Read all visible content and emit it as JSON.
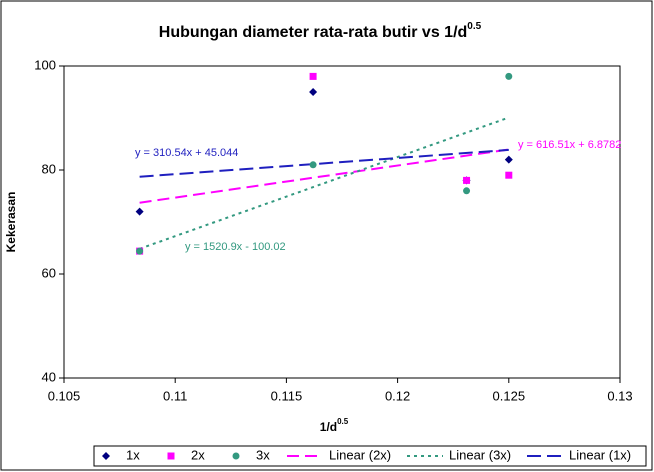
{
  "chart_data": {
    "type": "scatter",
    "title": "Hubungan diameter rata-rata butir vs 1/d",
    "title_sup": "0.5",
    "x_label": "1/d",
    "x_label_sup": "0.5",
    "y_label": "Kekerasan",
    "x": [
      0.1084,
      0.1162,
      0.1231,
      0.125
    ],
    "series": [
      {
        "name": "1x",
        "color": "#000080",
        "marker": "diamond",
        "values": [
          72,
          95,
          78,
          82
        ]
      },
      {
        "name": "2x",
        "color": "#ff00ff",
        "marker": "square",
        "values": [
          64.4,
          98,
          78,
          79
        ]
      },
      {
        "name": "3x",
        "color": "#339980",
        "marker": "circle",
        "values": [
          64.4,
          81,
          76,
          98
        ]
      }
    ],
    "trendlines": [
      {
        "name": "Linear (2x)",
        "color": "#ff00ff",
        "dash": "12 6",
        "slope": 616.51,
        "intercept": 6.8782,
        "label": "y = 616.51x + 6.8782"
      },
      {
        "name": "Linear (3x)",
        "color": "#339980",
        "dash": "3 4",
        "slope": 1520.9,
        "intercept": -100.02,
        "label": "y = 1520.9x - 100.02"
      },
      {
        "name": "Linear (1x)",
        "color": "#1f1fbf",
        "dash": "14 6",
        "slope": 310.54,
        "intercept": 45.044,
        "label": "y = 310.54x + 45.044"
      }
    ],
    "xlim": [
      0.105,
      0.13
    ],
    "xticks": [
      0.105,
      0.11,
      0.115,
      0.12,
      0.125,
      0.13
    ],
    "ylim": [
      40,
      100
    ],
    "yticks": [
      40,
      60,
      80,
      100
    ],
    "grid": false,
    "legend": "bottom"
  }
}
